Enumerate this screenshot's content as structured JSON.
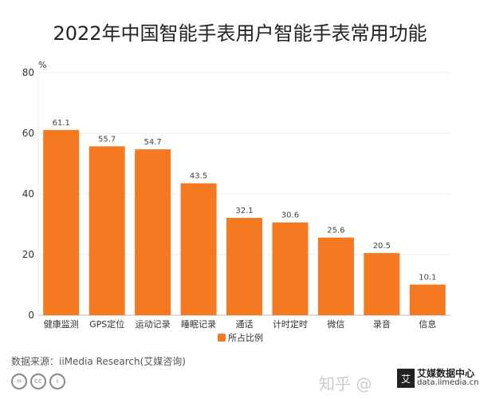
{
  "chart_data": {
    "type": "bar",
    "title": "2022年中国智能手表用户智能手表常用功能",
    "ylabel": "%",
    "xlabel": "",
    "categories": [
      "健康监测",
      "GPS定位",
      "运动记录",
      "睡眠记录",
      "通话",
      "计时定时",
      "微信",
      "录音",
      "信息"
    ],
    "series": [
      {
        "name": "所占比例",
        "values": [
          61.1,
          55.7,
          54.7,
          43.5,
          32.1,
          30.6,
          25.6,
          20.5,
          10.1
        ]
      }
    ],
    "ylim": [
      0,
      80
    ],
    "yticks": [
      0,
      20,
      40,
      60,
      80
    ],
    "grid": true,
    "legend": "bottom-center",
    "color": "#f47920"
  },
  "footer": {
    "source": "数据来源：iiMedia Research(艾媒咨询)",
    "cc_icons": [
      "=",
      "cc",
      "i"
    ],
    "watermark": "知乎 @",
    "logo_mark": "艾",
    "logo_name": "艾媒数据中心",
    "logo_url": "data.iimedia.cn"
  }
}
